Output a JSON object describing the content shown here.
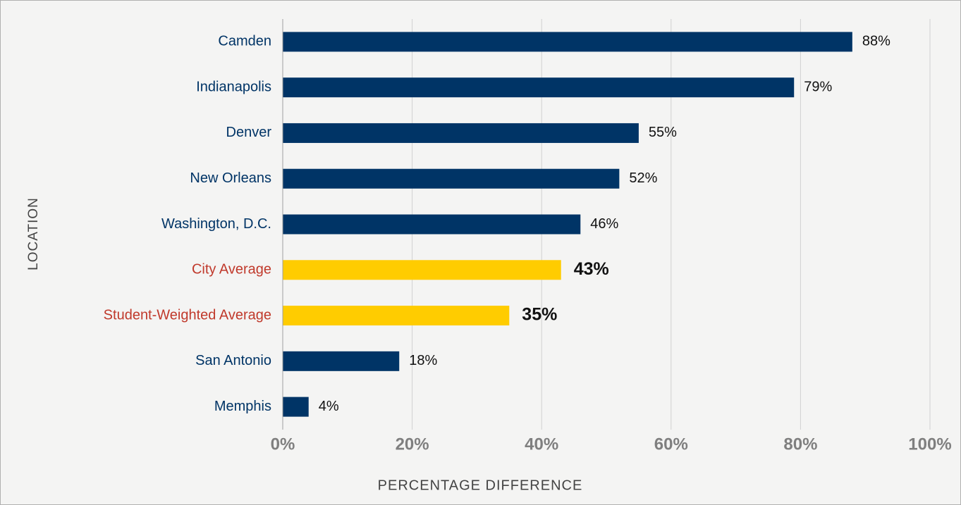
{
  "chart_data": {
    "type": "bar",
    "orientation": "horizontal",
    "categories": [
      "Camden",
      "Indianapolis",
      "Denver",
      "New Orleans",
      "Washington, D.C.",
      "City Average",
      "Student-Weighted Average",
      "San Antonio",
      "Memphis"
    ],
    "values": [
      88,
      79,
      55,
      52,
      46,
      43,
      35,
      18,
      4
    ],
    "value_labels": [
      "88%",
      "79%",
      "55%",
      "52%",
      "46%",
      "43%",
      "35%",
      "18%",
      "4%"
    ],
    "colors": [
      "#003466",
      "#003466",
      "#003466",
      "#003466",
      "#003466",
      "#ffcc00",
      "#ffcc00",
      "#003466",
      "#003466"
    ],
    "label_colors": [
      "#003466",
      "#003466",
      "#003466",
      "#003466",
      "#003466",
      "#c0392b",
      "#c0392b",
      "#003466",
      "#003466"
    ],
    "value_label_weights": [
      "normal",
      "normal",
      "normal",
      "normal",
      "normal",
      "bold",
      "bold",
      "normal",
      "normal"
    ],
    "xlabel": "PERCENTAGE DIFFERENCE",
    "ylabel": "LOCATION",
    "xlim": [
      0,
      100
    ],
    "xticks": [
      {
        "value": 0,
        "label": "0%"
      },
      {
        "value": 20,
        "label": "20%"
      },
      {
        "value": 40,
        "label": "40%"
      },
      {
        "value": 60,
        "label": "60%"
      },
      {
        "value": 80,
        "label": "80%"
      },
      {
        "value": 100,
        "label": "100%"
      }
    ],
    "grid": true
  }
}
